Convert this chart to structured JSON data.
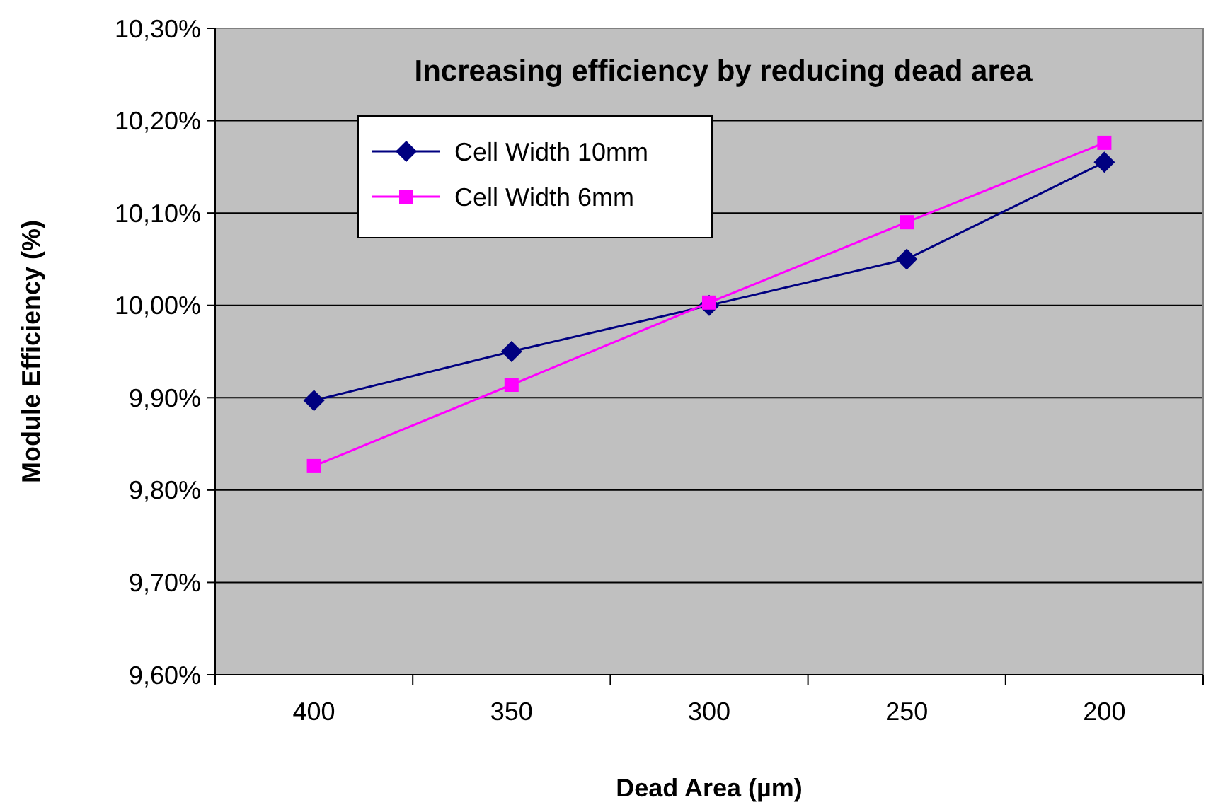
{
  "chart_data": {
    "type": "line",
    "title": "Increasing efficiency by reducing dead area",
    "xlabel": "Dead Area (µm)",
    "ylabel": "Module Efficiency (%)",
    "categories": [
      "400",
      "350",
      "300",
      "250",
      "200"
    ],
    "series": [
      {
        "name": "Cell Width 10mm",
        "color": "#000080",
        "marker": "diamond",
        "values": [
          9.897,
          9.95,
          10.0,
          10.05,
          10.155
        ]
      },
      {
        "name": "Cell Width 6mm",
        "color": "#ff00ff",
        "marker": "square",
        "values": [
          9.826,
          9.914,
          10.003,
          10.09,
          10.176
        ]
      }
    ],
    "ylim": [
      9.6,
      10.3
    ],
    "yticks": [
      {
        "value": 9.6,
        "label": "9,60%"
      },
      {
        "value": 9.7,
        "label": "9,70%"
      },
      {
        "value": 9.8,
        "label": "9,80%"
      },
      {
        "value": 9.9,
        "label": "9,90%"
      },
      {
        "value": 10.0,
        "label": "10,00%"
      },
      {
        "value": 10.1,
        "label": "10,10%"
      },
      {
        "value": 10.2,
        "label": "10,20%"
      },
      {
        "value": 10.3,
        "label": "10,30%"
      }
    ],
    "grid": "y",
    "legend": "top left"
  }
}
